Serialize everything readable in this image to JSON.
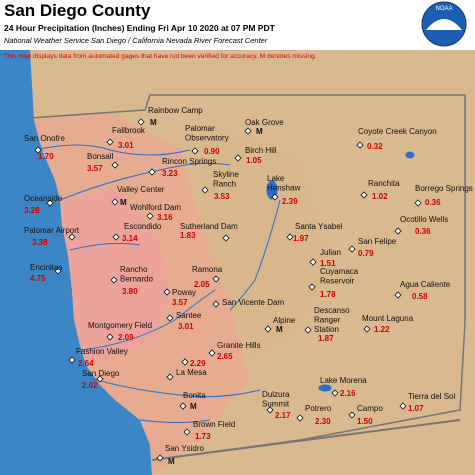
{
  "header": {
    "title": "San Diego County",
    "subtitle": "24 Hour Precipitation (Inches) Ending Fri Apr 10 2020 at 07 PM PDT",
    "credit": "National Weather Service San Diego / California Nevada River Forecast Center",
    "logo": "NOAA",
    "disclaimer": "This map displays data from automated gages that have not been verified for accuracy. M denotes missing."
  },
  "stations": [
    {
      "name": [
        "Rainbow Camp"
      ],
      "value": "M"
    },
    {
      "name": [
        "Oak Grove"
      ],
      "value": "M"
    },
    {
      "name": [
        "San Onofre"
      ],
      "value": "1.70"
    },
    {
      "name": [
        "Fallbrook"
      ],
      "value": "3.01"
    },
    {
      "name": [
        "Palomar",
        "Observatory"
      ],
      "value": "0.90"
    },
    {
      "name": [
        "Birch Hill"
      ],
      "value": "1.05"
    },
    {
      "name": [
        "Coyote Creek Canyon"
      ],
      "value": "0.32"
    },
    {
      "name": [
        "Bonsall"
      ],
      "value": "3.57"
    },
    {
      "name": [
        "Rincon Springs"
      ],
      "value": "3.23"
    },
    {
      "name": [
        "Skyline",
        "Ranch"
      ],
      "value": "3.53"
    },
    {
      "name": [
        "Lake",
        "Henshaw"
      ],
      "value": "2.39"
    },
    {
      "name": [
        "Ranchita"
      ],
      "value": "1.02"
    },
    {
      "name": [
        "Borrego Springs"
      ],
      "value": "0.36"
    },
    {
      "name": [
        "Valley Center"
      ],
      "value": "M"
    },
    {
      "name": [
        "Oceanside"
      ],
      "value": "3.28"
    },
    {
      "name": [
        "Wohlford Dam"
      ],
      "value": "3.16"
    },
    {
      "name": [
        "Ocotillo Wells"
      ],
      "value": "0.36"
    },
    {
      "name": [
        "Escondido"
      ],
      "value": "3.14"
    },
    {
      "name": [
        "Sutherland Dam"
      ],
      "value": "1.83"
    },
    {
      "name": [
        "Santa Ysabel"
      ],
      "value": "1.97"
    },
    {
      "name": [
        "Palomar Airport"
      ],
      "value": "3.38"
    },
    {
      "name": [
        "Julian"
      ],
      "value": "1.51"
    },
    {
      "name": [
        "San Felipe"
      ],
      "value": "0.79"
    },
    {
      "name": [
        "Encinitas"
      ],
      "value": "4.75"
    },
    {
      "name": [
        "Rancho",
        "Bernardo"
      ],
      "value": "3.80"
    },
    {
      "name": [
        "Ramona"
      ],
      "value": "2.05"
    },
    {
      "name": [
        "Cuyamaca",
        "Reservoir"
      ],
      "value": "1.78"
    },
    {
      "name": [
        "Agua Caliente"
      ],
      "value": "0.58"
    },
    {
      "name": [
        "Poway"
      ],
      "value": "3.57"
    },
    {
      "name": [
        "San Vicente Dam"
      ]
    },
    {
      "name": [
        "Santee"
      ],
      "value": "3.01"
    },
    {
      "name": [
        "Descanso",
        "Ranger",
        "Station"
      ],
      "value": "1.87"
    },
    {
      "name": [
        "Alpine"
      ],
      "value": "M"
    },
    {
      "name": [
        "Mount Laguna"
      ],
      "value": "1.22"
    },
    {
      "name": [
        "Montgomery Field"
      ],
      "value": "2.09"
    },
    {
      "name": [
        "Granite Hills"
      ],
      "value": "2.65"
    },
    {
      "value": "2.29"
    },
    {
      "name": [
        "Fashion Valley"
      ],
      "value": "2.64"
    },
    {
      "name": [
        "La Mesa"
      ]
    },
    {
      "name": [
        "San Diego"
      ],
      "value": "2.02"
    },
    {
      "name": [
        "Lake Morena"
      ],
      "value": "2.16"
    },
    {
      "name": [
        "Tierra del Sol"
      ],
      "value": "1.07"
    },
    {
      "name": [
        "Bonita"
      ],
      "value": "M"
    },
    {
      "name": [
        "Dulzura",
        "Summit"
      ],
      "value": "2.17"
    },
    {
      "name": [
        "Potrero"
      ],
      "value": "2.30"
    },
    {
      "name": [
        "Campo"
      ],
      "value": "1.50"
    },
    {
      "name": [
        "Brown Field"
      ],
      "value": "1.73"
    },
    {
      "name": [
        "San Ysidro"
      ],
      "value": "M"
    }
  ]
}
